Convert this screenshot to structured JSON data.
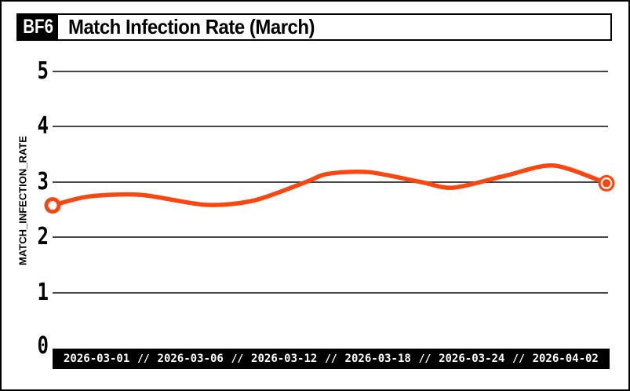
{
  "header": {
    "badge": "BF6",
    "title": "Match Infection Rate (March)"
  },
  "chart_data": {
    "type": "line",
    "title": "Match Infection Rate (March)",
    "xlabel": "",
    "ylabel": "MATCH_INFECTION_RATE",
    "ylim": [
      0,
      5
    ],
    "y_ticks": [
      0,
      1,
      2,
      3,
      4,
      5
    ],
    "x_tick_labels": [
      "2026-03-01",
      "2026-03-06",
      "2026-03-12",
      "2026-03-18",
      "2026-03-24",
      "2026-04-02"
    ],
    "x_tick_separator": "//",
    "grid": "horizontal",
    "legend": "none",
    "line_color": "#f84711",
    "series": [
      {
        "name": "match_infection_rate",
        "start_marker": "open-circle",
        "end_marker": "filled-circle",
        "points": [
          {
            "x": 0.0,
            "value": 2.58
          },
          {
            "x": 0.065,
            "value": 2.74
          },
          {
            "x": 0.16,
            "value": 2.77
          },
          {
            "x": 0.276,
            "value": 2.59
          },
          {
            "x": 0.364,
            "value": 2.67
          },
          {
            "x": 0.457,
            "value": 3.0
          },
          {
            "x": 0.497,
            "value": 3.15
          },
          {
            "x": 0.571,
            "value": 3.18
          },
          {
            "x": 0.666,
            "value": 3.0
          },
          {
            "x": 0.724,
            "value": 2.9
          },
          {
            "x": 0.819,
            "value": 3.12
          },
          {
            "x": 0.905,
            "value": 3.3
          },
          {
            "x": 1.0,
            "value": 2.98
          }
        ]
      }
    ]
  },
  "colors": {
    "accent": "#f84711",
    "bar_bg": "#000000",
    "bar_text": "#ffffff",
    "grid": "#464646",
    "background": "#ffffff",
    "text": "#000000"
  }
}
